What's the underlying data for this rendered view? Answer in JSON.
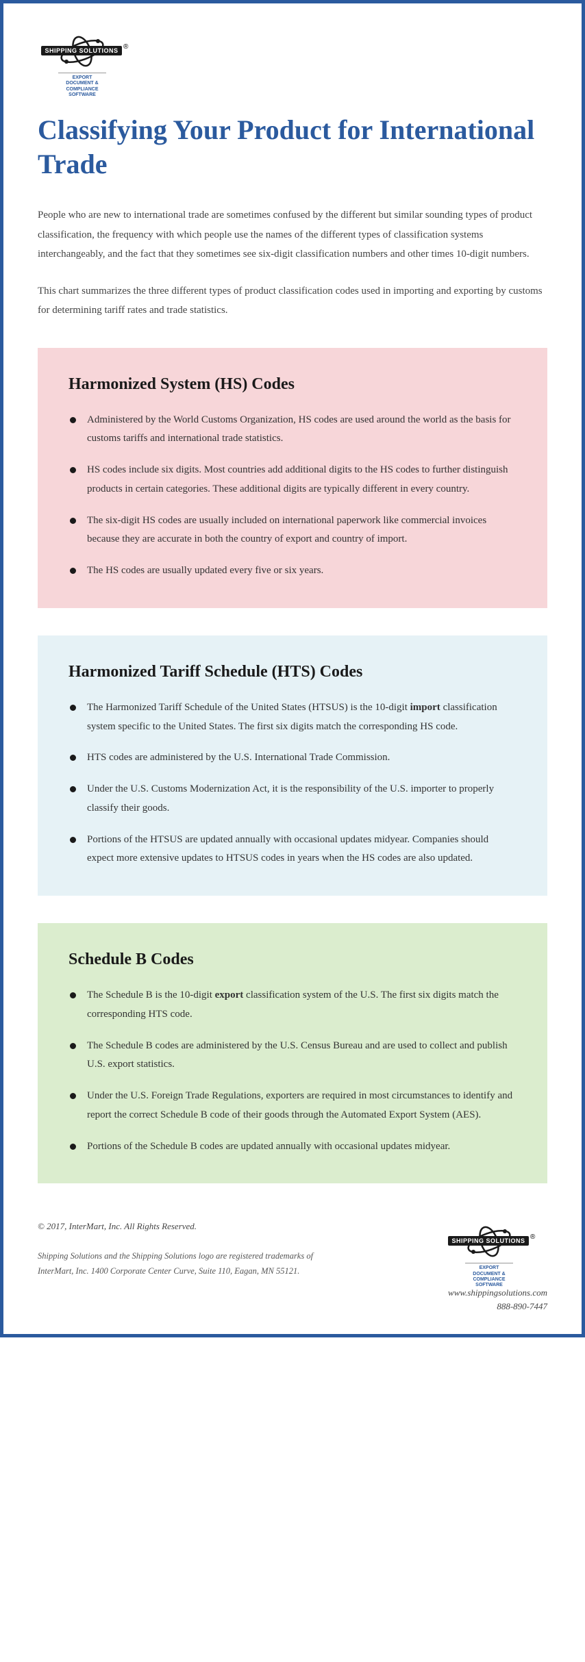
{
  "logo": {
    "banner": "SHIPPING SOLUTIONS",
    "reg": "®",
    "sub": "EXPORT DOCUMENT & COMPLIANCE SOFTWARE"
  },
  "title": "Classifying Your Product for International Trade",
  "intro1": "People who are new to international trade are sometimes confused by the different but similar sounding types of product classification, the frequency with which people use the names of the different types of classification systems interchangeably, and the fact that they sometimes see six-digit classification numbers and other times 10-digit numbers.",
  "intro2": "This chart summarizes the three different types of product classification codes used in importing and exporting by customs for determining tariff rates and trade statistics.",
  "cards": [
    {
      "bg": "#f7d6d9",
      "heading": "Harmonized System (HS) Codes",
      "items": [
        "Administered by the World Customs Organization, HS codes are used around the world as the basis for customs tariffs and international trade statistics.",
        "HS codes include six digits. Most countries add additional digits to the HS codes to further distinguish products in certain categories. These additional digits are typically different in every country.",
        "The six-digit HS codes are usually included on international paperwork like commercial invoices because they are accurate in both the country of export and country of import.",
        "The HS codes are usually updated every five or six years."
      ]
    },
    {
      "bg": "#e6f2f6",
      "heading": "Harmonized Tariff Schedule (HTS) Codes",
      "items": [
        "The Harmonized Tariff Schedule of the United States (HTSUS) is the 10-digit <b>import</b> classification system specific to the United States. The first six digits match the corresponding HS code.",
        "HTS codes are administered by the U.S. International Trade Commission.",
        "Under the U.S. Customs Modernization Act, it is the responsibility of the U.S. importer to properly classify their goods.",
        "Portions of the HTSUS are updated annually with occasional updates midyear. Companies should expect more extensive updates to HTSUS codes in years when the HS codes are also updated."
      ]
    },
    {
      "bg": "#dbedce",
      "heading": "Schedule B Codes",
      "items": [
        "The Schedule B is the 10-digit <b>export</b> classification system of the U.S. The first six digits match the corresponding HTS code.",
        "The Schedule B codes are administered by the U.S. Census Bureau and are used to collect and publish U.S. export statistics.",
        "Under the U.S. Foreign Trade Regulations, exporters are required in most circumstances to identify and report the correct Schedule B code of their goods through the Automated Export System (AES).",
        "Portions of the Schedule B codes are updated annually with occasional updates midyear."
      ]
    }
  ],
  "footer": {
    "copyright": "© 2017, InterMart, Inc. All Rights Reserved.",
    "trademark": "Shipping Solutions and the Shipping Solutions logo are registered trademarks of InterMart, Inc. 1400 Corporate Center Curve, Suite 110, Eagan, MN 55121.",
    "website": "www.shippingsolutions.com",
    "phone": "888-890-7447"
  }
}
